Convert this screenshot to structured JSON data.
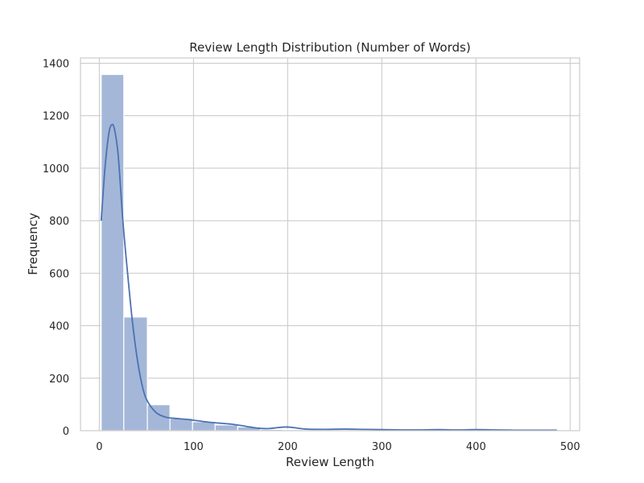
{
  "chart_data": {
    "type": "bar",
    "title": "Review Length Distribution (Number of Words)",
    "xlabel": "Review Length",
    "ylabel": "Frequency",
    "xlim": [
      -20,
      510
    ],
    "ylim": [
      0,
      1420
    ],
    "xticks": [
      0,
      100,
      200,
      300,
      400,
      500
    ],
    "yticks": [
      0,
      200,
      400,
      600,
      800,
      1000,
      1200,
      1400
    ],
    "grid": true,
    "bar_color": "#a4b7d9",
    "kde_color": "#4c72b0",
    "bins": [
      {
        "start": 2,
        "end": 26,
        "value": 1357
      },
      {
        "start": 26,
        "end": 51,
        "value": 433
      },
      {
        "start": 51,
        "end": 75,
        "value": 99
      },
      {
        "start": 75,
        "end": 99,
        "value": 47
      },
      {
        "start": 99,
        "end": 123,
        "value": 34
      },
      {
        "start": 123,
        "end": 147,
        "value": 22
      },
      {
        "start": 147,
        "end": 171,
        "value": 14
      },
      {
        "start": 171,
        "end": 195,
        "value": 5
      },
      {
        "start": 195,
        "end": 220,
        "value": 4
      },
      {
        "start": 220,
        "end": 244,
        "value": 3
      },
      {
        "start": 244,
        "end": 268,
        "value": 3
      },
      {
        "start": 268,
        "end": 292,
        "value": 3
      },
      {
        "start": 292,
        "end": 316,
        "value": 2
      },
      {
        "start": 316,
        "end": 340,
        "value": 1
      },
      {
        "start": 340,
        "end": 364,
        "value": 1
      },
      {
        "start": 364,
        "end": 389,
        "value": 2
      },
      {
        "start": 389,
        "end": 413,
        "value": 2
      },
      {
        "start": 413,
        "end": 437,
        "value": 1
      },
      {
        "start": 437,
        "end": 461,
        "value": 1
      },
      {
        "start": 461,
        "end": 486,
        "value": 2
      }
    ],
    "kde": {
      "x": [
        2,
        6,
        10,
        13,
        16,
        20,
        25,
        30,
        35,
        40,
        45,
        50,
        60,
        70,
        80,
        90,
        100,
        110,
        120,
        130,
        140,
        150,
        160,
        170,
        180,
        190,
        200,
        210,
        220,
        240,
        260,
        280,
        300,
        320,
        340,
        360,
        380,
        400,
        420,
        440,
        460,
        486
      ],
      "y": [
        800,
        1000,
        1130,
        1165,
        1150,
        1050,
        800,
        600,
        420,
        280,
        180,
        120,
        70,
        52,
        47,
        44,
        40,
        35,
        31,
        28,
        25,
        20,
        14,
        9,
        8,
        12,
        14,
        10,
        6,
        5,
        6,
        5,
        4,
        3,
        3,
        4,
        3,
        4,
        3,
        2,
        2,
        2
      ]
    }
  }
}
